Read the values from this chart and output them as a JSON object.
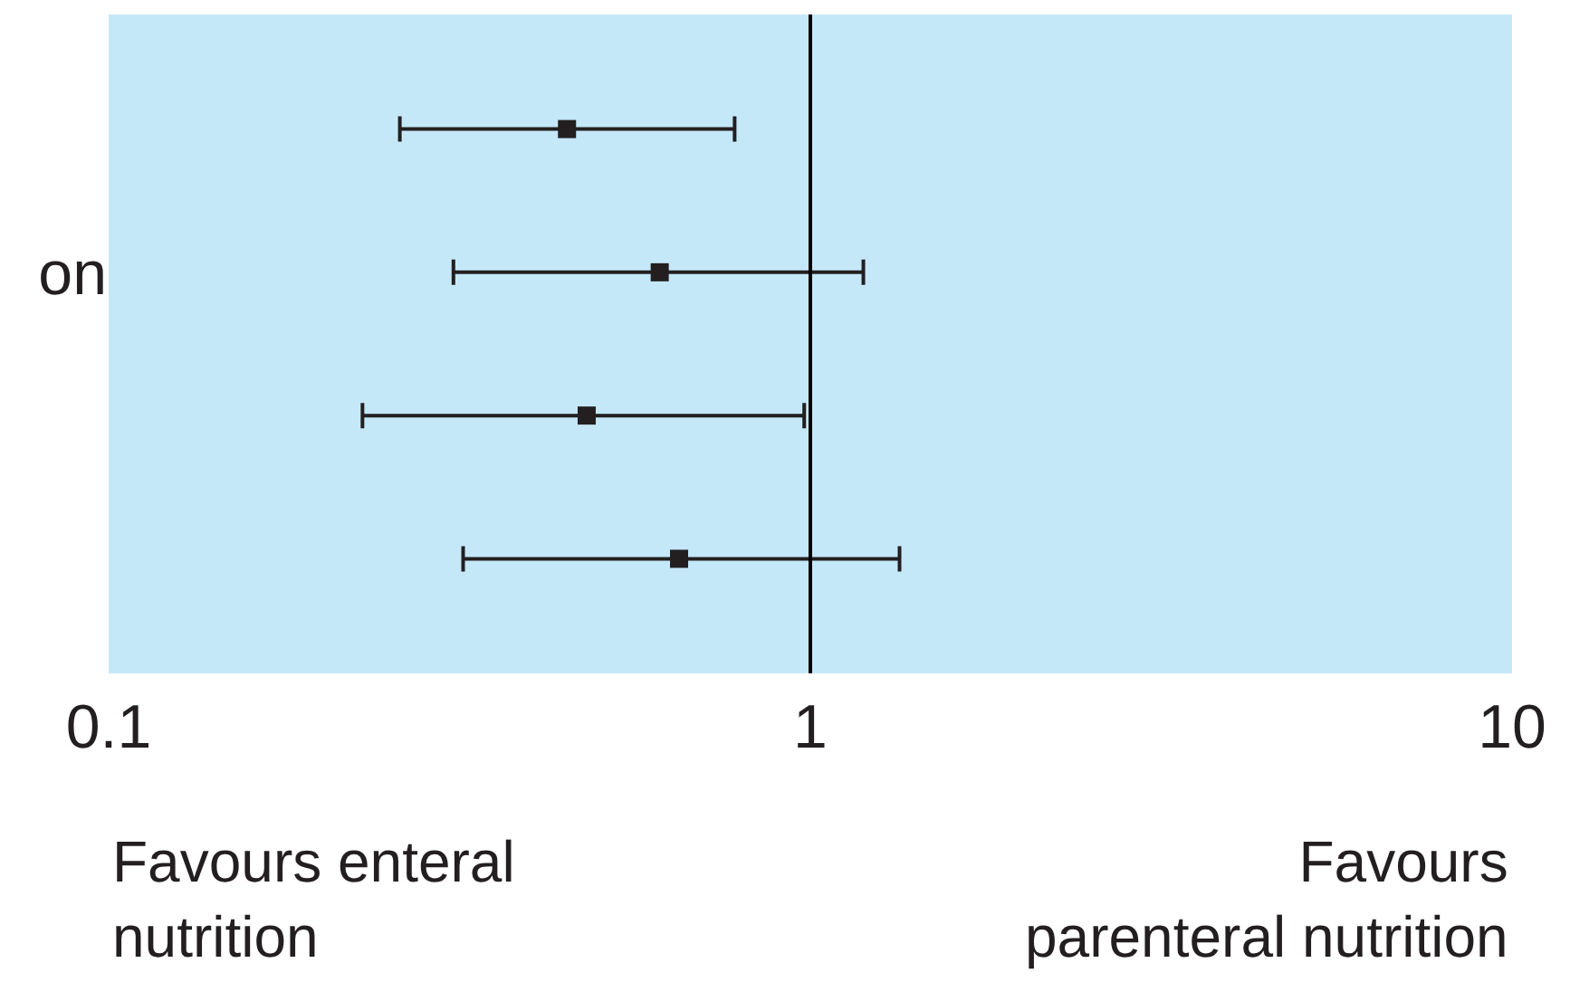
{
  "chart_data": {
    "type": "scatter",
    "orientation": "horizontal",
    "categories": [
      null,
      "on",
      null,
      null
    ],
    "values": [
      0.45,
      0.61,
      0.48,
      0.65
    ],
    "errors": [
      [
        0.26,
        0.78
      ],
      [
        0.31,
        1.19
      ],
      [
        0.23,
        0.98
      ],
      [
        0.32,
        1.34
      ]
    ],
    "color": "#231f20",
    "marker": "square",
    "log": "x",
    "xlim": [
      0.1,
      10
    ],
    "xticks": [
      0.1,
      1,
      10
    ],
    "grid": false,
    "ref_lines": [
      {
        "axis": "x",
        "value": 1,
        "color": "#000000"
      }
    ],
    "bands": [
      {
        "axis": "x",
        "from": 0.1,
        "to": 10,
        "color": "#c5e8f9"
      }
    ],
    "annotations": [
      "Favours enteral\nnutrition",
      "Favours\nparenteral nutrition"
    ]
  }
}
